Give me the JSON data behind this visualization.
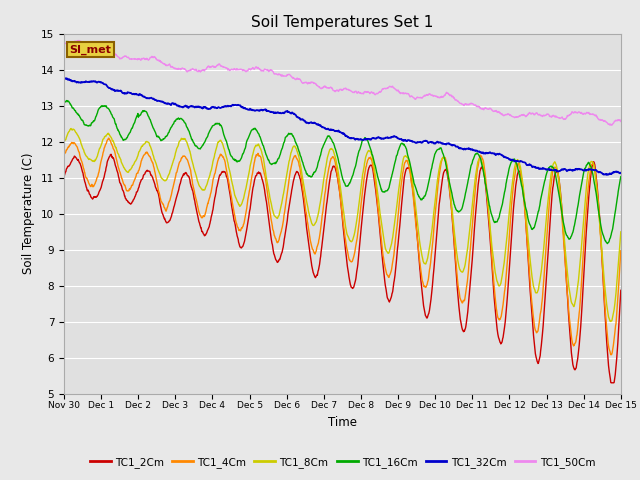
{
  "title": "Soil Temperatures Set 1",
  "xlabel": "Time",
  "ylabel": "Soil Temperature (C)",
  "ylim": [
    5.0,
    15.0
  ],
  "yticks": [
    5.0,
    6.0,
    7.0,
    8.0,
    9.0,
    10.0,
    11.0,
    12.0,
    13.0,
    14.0,
    15.0
  ],
  "fig_bg": "#e8e8e8",
  "plot_bg": "#e0e0e0",
  "annotation_text": "SI_met",
  "annotation_color": "#8B0000",
  "annotation_bg": "#e8d040",
  "annotation_border": "#8B6000",
  "series_colors": {
    "TC1_2Cm": "#cc0000",
    "TC1_4Cm": "#ff8800",
    "TC1_8Cm": "#cccc00",
    "TC1_16Cm": "#00aa00",
    "TC1_32Cm": "#0000cc",
    "TC1_50Cm": "#ee88ee"
  },
  "x_tick_labels": [
    "Nov 30",
    "Dec 1",
    "Dec 2",
    "Dec 3",
    "Dec 4",
    "Dec 5",
    "Dec 6",
    "Dec 7",
    "Dec 8",
    "Dec 9",
    "Dec 10",
    "Dec 11",
    "Dec 12",
    "Dec 13",
    "Dec 14",
    "Dec 15"
  ],
  "legend_labels": [
    "TC1_2Cm",
    "TC1_4Cm",
    "TC1_8Cm",
    "TC1_16Cm",
    "TC1_32Cm",
    "TC1_50Cm"
  ],
  "grid_color": "#ffffff",
  "linewidth": 1.0
}
